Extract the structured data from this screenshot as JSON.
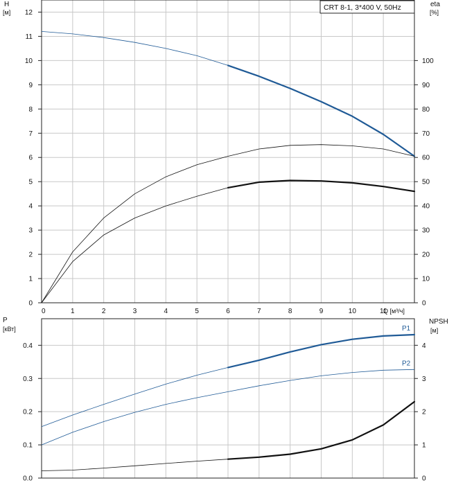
{
  "legend_box": {
    "text": "CRT 8-1, 3*400 V, 50Hz"
  },
  "top_chart": {
    "y_left_label_line1": "H",
    "y_left_label_line2": "[м]",
    "y_right_label_line1": "eta",
    "y_right_label_line2": "[%]",
    "x_label": "Q [м³/ч]"
  },
  "bottom_chart": {
    "y_left_label_line1": "P",
    "y_left_label_line2": "[кВт]",
    "y_right_label_line1": "NPSH",
    "y_right_label_line2": "[м]"
  },
  "colors": {
    "blue": "#1f5a96",
    "black": "#111111",
    "grid": "#c8c8c8",
    "axis": "#222222"
  },
  "chart_data": [
    {
      "type": "line",
      "title": "CRT 8-1, 3*400 V, 50Hz",
      "xlabel": "Q [м³/ч]",
      "ylabel": "H [м]",
      "y2label": "eta [%]",
      "xlim": [
        0,
        12
      ],
      "ylim": [
        0,
        12.5
      ],
      "y2lim": [
        0,
        125
      ],
      "xticks": [
        0,
        1,
        2,
        3,
        4,
        5,
        6,
        7,
        8,
        9,
        10,
        11
      ],
      "yticks": [
        0,
        1,
        2,
        3,
        4,
        5,
        6,
        7,
        8,
        9,
        10,
        11,
        12
      ],
      "y2ticks": [
        0,
        10,
        20,
        30,
        40,
        50,
        60,
        70,
        80,
        90,
        100
      ],
      "grid": true,
      "series": [
        {
          "axis": "left",
          "color": "#1f5a96",
          "x": [
            0,
            1,
            2,
            3,
            4,
            5,
            6,
            7,
            8,
            9,
            10,
            11,
            12
          ],
          "y": [
            11.2,
            11.1,
            10.95,
            10.75,
            10.5,
            10.2,
            9.8,
            9.35,
            8.85,
            8.3,
            7.7,
            6.95,
            6.05
          ],
          "bold_from": 6
        },
        {
          "axis": "right",
          "color": "#111111",
          "x": [
            0,
            1,
            2,
            3,
            4,
            5,
            6,
            7,
            8,
            9,
            10,
            11,
            12
          ],
          "y": [
            0,
            21,
            35,
            45,
            52,
            57,
            60.5,
            63.5,
            65,
            65.3,
            64.8,
            63.5,
            60.5
          ],
          "bold_from": 99
        },
        {
          "axis": "right",
          "color": "#111111",
          "x": [
            0,
            1,
            2,
            3,
            4,
            5,
            6,
            7,
            8,
            9,
            10,
            11,
            12
          ],
          "y": [
            0,
            17,
            28,
            35,
            40,
            44,
            47.5,
            49.8,
            50.5,
            50.3,
            49.5,
            48,
            46
          ],
          "bold_from": 6
        }
      ]
    },
    {
      "type": "line",
      "ylabel": "P [кВт]",
      "y2label": "NPSH [м]",
      "xlim": [
        0,
        12
      ],
      "ylim": [
        0,
        0.48
      ],
      "y2lim": [
        0,
        4.8
      ],
      "yticks": [
        0.0,
        0.1,
        0.2,
        0.3,
        0.4
      ],
      "ytick_labels": [
        "0.0",
        "0.1",
        "0.2",
        "0.3",
        "0.4"
      ],
      "y2ticks": [
        0,
        1,
        2,
        3,
        4
      ],
      "grid": true,
      "series": [
        {
          "name": "P1",
          "axis": "left",
          "color": "#1f5a96",
          "x": [
            0,
            1,
            2,
            3,
            4,
            5,
            6,
            7,
            8,
            9,
            10,
            11,
            12
          ],
          "y": [
            0.155,
            0.19,
            0.222,
            0.253,
            0.283,
            0.31,
            0.333,
            0.355,
            0.38,
            0.402,
            0.418,
            0.428,
            0.432
          ],
          "bold_from": 6
        },
        {
          "name": "P2",
          "axis": "left",
          "color": "#1f5a96",
          "x": [
            0,
            1,
            2,
            3,
            4,
            5,
            6,
            7,
            8,
            9,
            10,
            11,
            12
          ],
          "y": [
            0.1,
            0.138,
            0.17,
            0.198,
            0.222,
            0.242,
            0.26,
            0.278,
            0.294,
            0.308,
            0.318,
            0.325,
            0.327
          ],
          "bold_from": 99
        },
        {
          "axis": "right",
          "color": "#111111",
          "x": [
            0,
            1,
            2,
            3,
            4,
            5,
            6,
            7,
            8,
            9,
            10,
            11,
            12
          ],
          "y": [
            0.22,
            0.24,
            0.3,
            0.37,
            0.44,
            0.51,
            0.57,
            0.63,
            0.72,
            0.88,
            1.15,
            1.6,
            2.3
          ],
          "bold_from": 6
        }
      ]
    }
  ]
}
